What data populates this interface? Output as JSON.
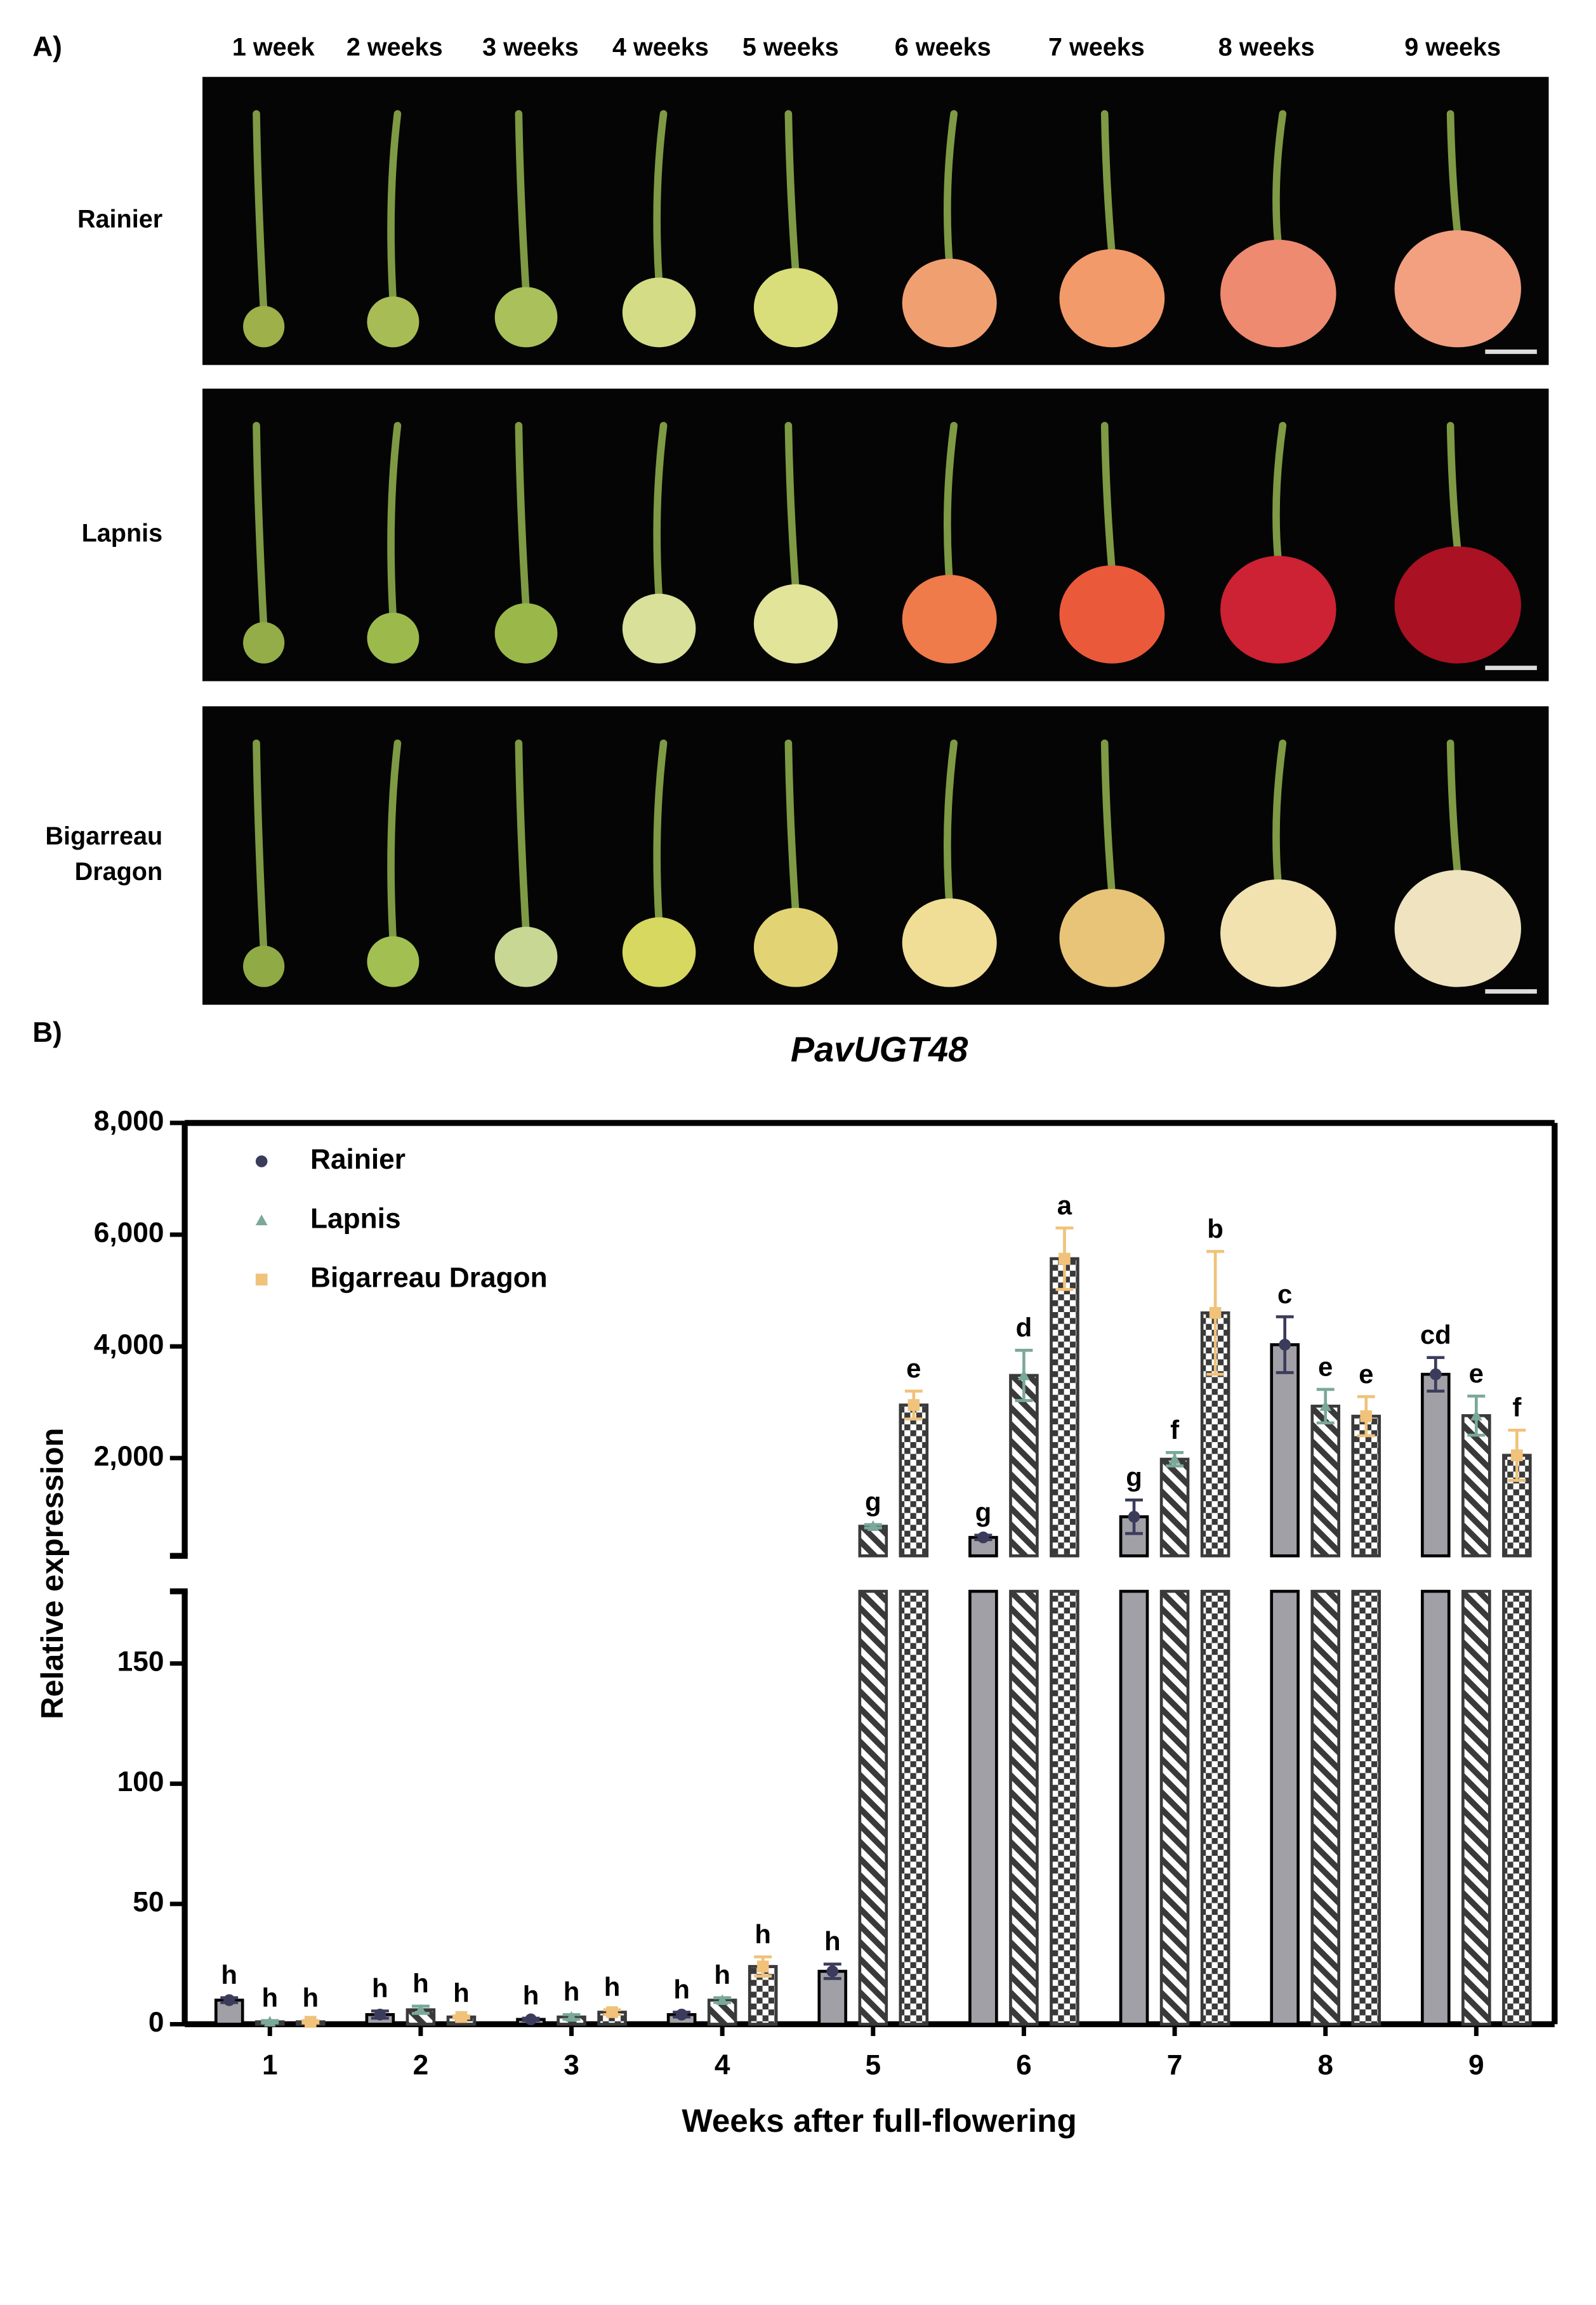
{
  "panel_a": {
    "label": "A)",
    "weeks": [
      "1 week",
      "2 weeks",
      "3 weeks",
      "4 weeks",
      "5 weeks",
      "6 weeks",
      "7 weeks",
      "8 weeks",
      "9 weeks"
    ],
    "rows": [
      {
        "label_lines": [
          "Rainier"
        ]
      },
      {
        "label_lines": [
          "Lapnis"
        ]
      },
      {
        "label_lines": [
          "Bigarreau",
          "Dragon"
        ]
      }
    ]
  },
  "panel_b": {
    "label": "B)"
  },
  "chart_data": {
    "type": "bar",
    "title": "PavUGT48",
    "x_label": "Weeks after full-flowering",
    "y_label": "Relative expression",
    "categories": [
      "1",
      "2",
      "3",
      "4",
      "5",
      "6",
      "7",
      "8",
      "9"
    ],
    "ylim_lower": [
      0,
      180
    ],
    "yticks_lower": [
      0,
      50,
      100,
      150
    ],
    "ylim_upper": [
      250,
      8000
    ],
    "yticks_upper": [
      {
        "value": 2000,
        "label": "2,000"
      },
      {
        "value": 4000,
        "label": "4,000"
      },
      {
        "value": 6000,
        "label": "6,000"
      },
      {
        "value": 8000,
        "label": "8,000"
      }
    ],
    "legend": "top-left",
    "series": [
      {
        "name": "Rainier",
        "color": "#3b3b5c",
        "marker": "circle",
        "pattern": "solid",
        "fill": "#a0a0a6",
        "values": [
          10,
          4,
          2,
          4,
          22,
          580,
          950,
          4030,
          3500
        ],
        "errors": [
          1,
          1.5,
          0.5,
          1,
          3,
          40,
          300,
          500,
          300
        ],
        "letters": [
          "h",
          "h",
          "h",
          "h",
          "h",
          "g",
          "g",
          "c",
          "cd"
        ]
      },
      {
        "name": "Lapnis",
        "color": "#7aa89a",
        "marker": "triangle",
        "pattern": "stripes",
        "fill": "#3a3a3a",
        "values": [
          1,
          6,
          3,
          10,
          780,
          3480,
          1980,
          2930,
          2760
        ],
        "errors": [
          0.5,
          1.5,
          1,
          1,
          30,
          450,
          120,
          300,
          350
        ],
        "letters": [
          "h",
          "h",
          "h",
          "h",
          "g",
          "d",
          "f",
          "e",
          "e"
        ]
      },
      {
        "name": "Bigarreau Dragon",
        "color": "#f0c27a",
        "marker": "square",
        "pattern": "checker",
        "fill": "#3a3a3a",
        "values": [
          1,
          3,
          5,
          24,
          2950,
          5570,
          4600,
          2750,
          2050
        ],
        "errors": [
          0.5,
          0.5,
          1,
          4,
          250,
          550,
          1100,
          350,
          450
        ],
        "letters": [
          "h",
          "h",
          "h",
          "h",
          "e",
          "a",
          "b",
          "e",
          "f"
        ]
      }
    ]
  }
}
